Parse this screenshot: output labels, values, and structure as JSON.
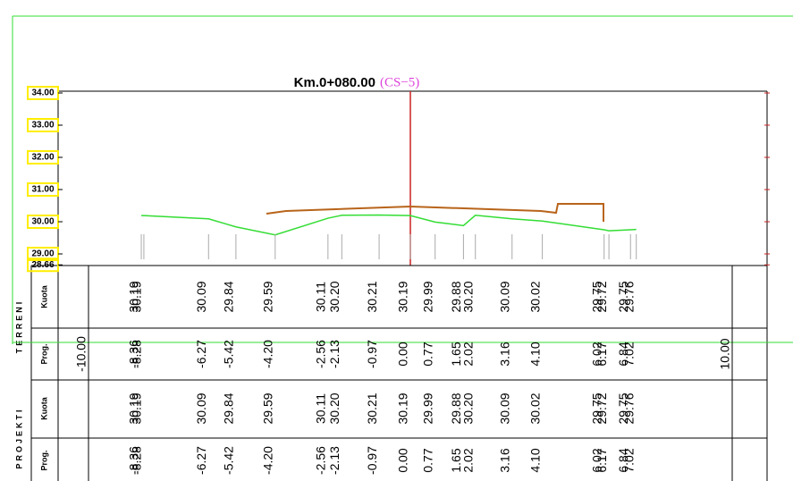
{
  "title": "Km.0+080.00",
  "subtitle": "(CS−5)",
  "axis_labels": [
    "34.00",
    "33.00",
    "32.00",
    "31.00",
    "30.00",
    "29.00",
    "28.66"
  ],
  "terreni": {
    "label": "TERRENI",
    "kuota_label": "Kuota",
    "prog_label": "Prog.",
    "limits": [
      "-10.00",
      "10.00"
    ],
    "points": [
      {
        "prog": "-8.36",
        "kuota": "30.19"
      },
      {
        "prog": "-8.28",
        "kuota": "30.19"
      },
      {
        "prog": "-6.27",
        "kuota": "30.09"
      },
      {
        "prog": "-5.42",
        "kuota": "29.84"
      },
      {
        "prog": "-4.20",
        "kuota": "29.59"
      },
      {
        "prog": "-2.56",
        "kuota": "30.11"
      },
      {
        "prog": "-2.13",
        "kuota": "30.20"
      },
      {
        "prog": "-0.97",
        "kuota": "30.21"
      },
      {
        "prog": "0.00",
        "kuota": "30.19"
      },
      {
        "prog": "0.77",
        "kuota": "29.99"
      },
      {
        "prog": "1.65",
        "kuota": "29.88"
      },
      {
        "prog": "2.02",
        "kuota": "30.20"
      },
      {
        "prog": "3.16",
        "kuota": "30.09"
      },
      {
        "prog": "4.10",
        "kuota": "30.02"
      },
      {
        "prog": "6.02",
        "kuota": "29.75"
      },
      {
        "prog": "6.17",
        "kuota": "29.72"
      },
      {
        "prog": "6.84",
        "kuota": "29.75"
      },
      {
        "prog": "7.02",
        "kuota": "29.76"
      }
    ]
  },
  "projekti": {
    "label": "PROJEKTI",
    "kuota_label": "Kuota",
    "prog_label": "Prog.",
    "points": [
      {
        "prog": "-8.36",
        "kuota": "30.19"
      },
      {
        "prog": "-8.28",
        "kuota": "30.19"
      },
      {
        "prog": "-6.27",
        "kuota": "30.09"
      },
      {
        "prog": "-5.42",
        "kuota": "29.84"
      },
      {
        "prog": "-4.20",
        "kuota": "29.59"
      },
      {
        "prog": "-2.56",
        "kuota": "30.11"
      },
      {
        "prog": "-2.13",
        "kuota": "30.20"
      },
      {
        "prog": "-0.97",
        "kuota": "30.21"
      },
      {
        "prog": "0.00",
        "kuota": "30.19"
      },
      {
        "prog": "0.77",
        "kuota": "29.99"
      },
      {
        "prog": "1.65",
        "kuota": "29.88"
      },
      {
        "prog": "2.02",
        "kuota": "30.20"
      },
      {
        "prog": "3.16",
        "kuota": "30.09"
      },
      {
        "prog": "4.10",
        "kuota": "30.02"
      },
      {
        "prog": "6.02",
        "kuota": "29.75"
      },
      {
        "prog": "6.17",
        "kuota": "29.72"
      },
      {
        "prog": "6.84",
        "kuota": "29.75"
      },
      {
        "prog": "7.02",
        "kuota": "29.76"
      }
    ]
  }
}
